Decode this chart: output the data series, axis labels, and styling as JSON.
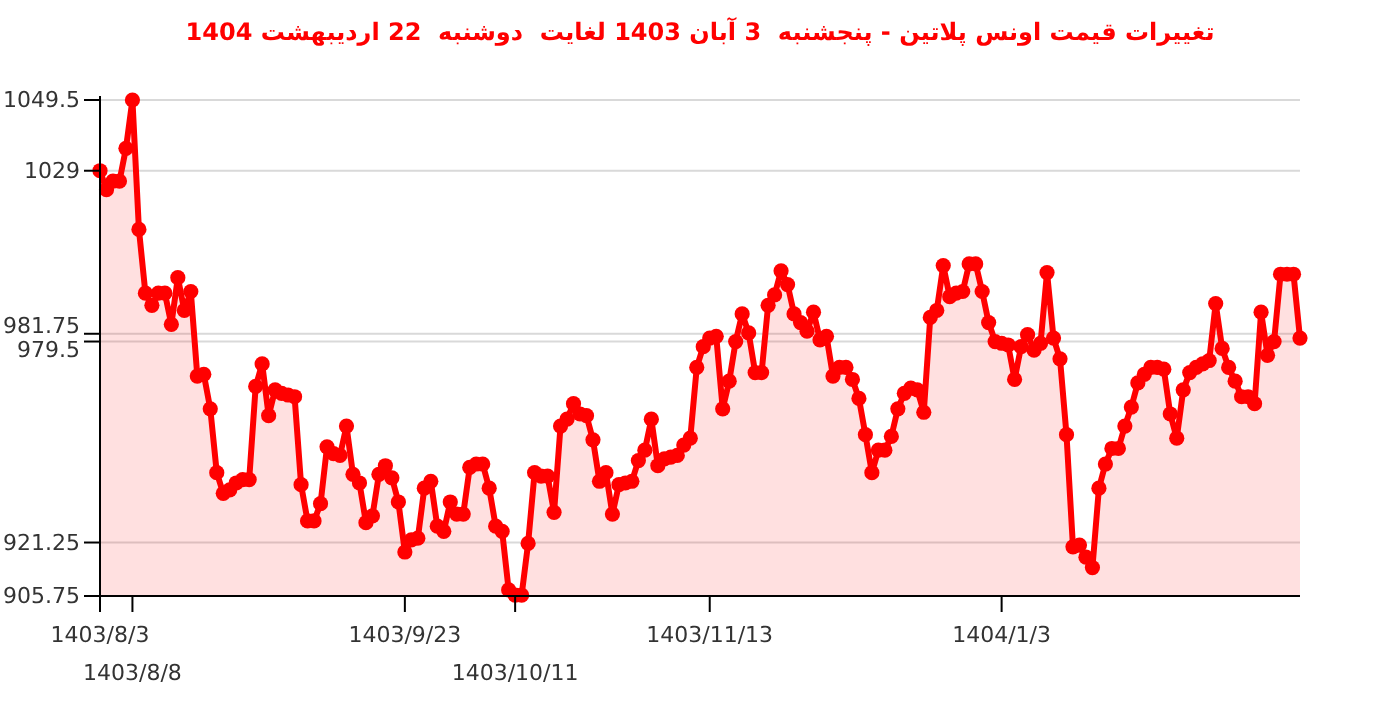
{
  "chart_data": {
    "type": "area",
    "title": "تغییرات قیمت اونس پلاتین - پنجشنبه  3 آبان 1403 لغایت  دوشنبه  22 اردیبهشت 1404",
    "categories": [
      "1403/8/3",
      null,
      null,
      null,
      null,
      "1403/8/8",
      null,
      null,
      null,
      null,
      null,
      null,
      null,
      null,
      null,
      null,
      null,
      null,
      null,
      null,
      null,
      null,
      null,
      null,
      null,
      null,
      null,
      null,
      null,
      null,
      null,
      null,
      null,
      null,
      null,
      null,
      null,
      null,
      null,
      null,
      null,
      null,
      null,
      null,
      null,
      null,
      null,
      "1403/9/23",
      null,
      null,
      null,
      null,
      null,
      null,
      null,
      null,
      null,
      null,
      null,
      null,
      null,
      null,
      null,
      null,
      "1403/10/11",
      null,
      null,
      null,
      null,
      null,
      null,
      null,
      null,
      null,
      null,
      null,
      null,
      null,
      null,
      null,
      null,
      null,
      null,
      null,
      null,
      null,
      null,
      null,
      null,
      null,
      null,
      null,
      null,
      null,
      "1403/11/13",
      null,
      null,
      null,
      null,
      null,
      null,
      null,
      null,
      null,
      null,
      null,
      null,
      null,
      null,
      null,
      null,
      null,
      null,
      null,
      null,
      null,
      null,
      null,
      null,
      null,
      null,
      null,
      null,
      null,
      null,
      null,
      null,
      null,
      null,
      null,
      null,
      null,
      null,
      null,
      null,
      null,
      null,
      null,
      null,
      "1404/1/3",
      null,
      null,
      null,
      null,
      null,
      null,
      null,
      null,
      null,
      null,
      null,
      null,
      null,
      null,
      null,
      null,
      null,
      null,
      null,
      null,
      null,
      null,
      null,
      null,
      null,
      null,
      null,
      null,
      null,
      null,
      null,
      null,
      null,
      null,
      null,
      null,
      null,
      null,
      null,
      null,
      null,
      null,
      null,
      null,
      null,
      null
    ],
    "values": [
      1029,
      1023.5,
      1026,
      1026,
      1035.5,
      1049.5,
      1012,
      993.5,
      990,
      993.5,
      993.5,
      984.5,
      998,
      988.5,
      994,
      969.5,
      970,
      960,
      941.5,
      935.5,
      936.5,
      938.5,
      939.5,
      939.5,
      966.5,
      973,
      958,
      965.5,
      964.5,
      964,
      963.5,
      938,
      927.5,
      927.5,
      932.5,
      949,
      947,
      946.5,
      955,
      941,
      938.5,
      927,
      929,
      941,
      943.5,
      940,
      933,
      918.5,
      922,
      922.5,
      937,
      939,
      926,
      924.5,
      933,
      929.5,
      929.5,
      943,
      944,
      944,
      937,
      926,
      924.5,
      907.5,
      906,
      906,
      921,
      941.5,
      940.5,
      940.5,
      930,
      955,
      957,
      961.5,
      958.5,
      958,
      951,
      939,
      941.5,
      929.5,
      938,
      938.5,
      939,
      945,
      948,
      957,
      943.5,
      945.5,
      946,
      946.5,
      949.5,
      951.5,
      972,
      978,
      980.5,
      981,
      960,
      968,
      979.5,
      987.5,
      982,
      970.5,
      970.5,
      990,
      993,
      1000,
      996,
      987.5,
      985,
      982.5,
      988,
      980,
      981,
      969.5,
      972,
      972,
      968.5,
      963,
      952.5,
      941.5,
      948,
      948,
      952,
      960,
      964.5,
      966,
      965.5,
      959,
      986.5,
      988.5,
      1001.5,
      992.5,
      993.5,
      994,
      1002,
      1002,
      994,
      985,
      979.5,
      979,
      978.5,
      968.5,
      978,
      981.5,
      977,
      979,
      999.5,
      980.5,
      974.5,
      952.5,
      920,
      920.5,
      917,
      914,
      937,
      944,
      948.5,
      948.5,
      955,
      960.5,
      967.5,
      970,
      972,
      972,
      971.5,
      958.5,
      951.5,
      965.5,
      970.5,
      972,
      973,
      974,
      990.5,
      977.5,
      972,
      968,
      963.5,
      963.5,
      961.5,
      988,
      975.5,
      979.5,
      999,
      999,
      999,
      980.5
    ],
    "color": "#ff0000",
    "marker": "circle",
    "ylim": [
      905.75,
      1049.5
    ],
    "yticks": [
      905.75,
      921.25,
      979.5,
      981.75,
      1029,
      1049.5
    ],
    "grid": "y"
  }
}
